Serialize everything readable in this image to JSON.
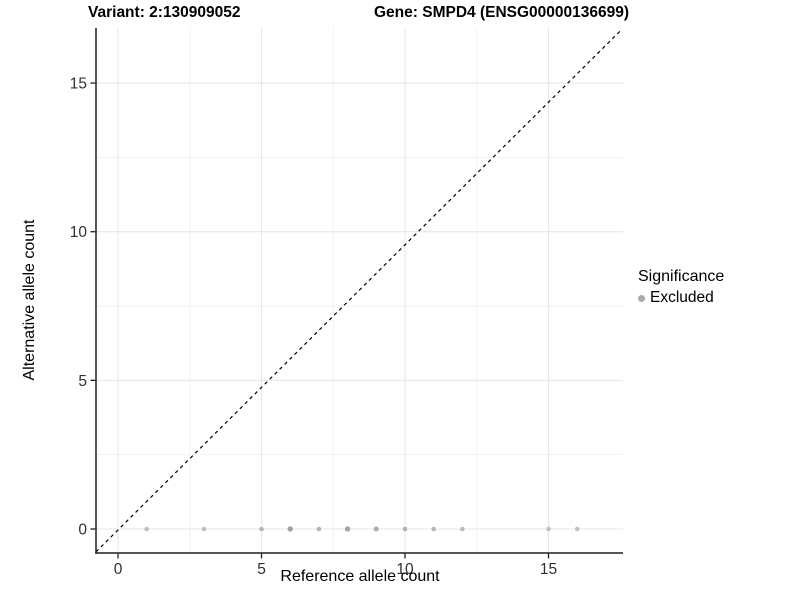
{
  "chart_data": {
    "type": "scatter",
    "title_left": "Variant: 2:130909052",
    "title_right": "Gene: SMPD4 (ENSG00000136699)",
    "xlabel": "Reference allele count",
    "ylabel": "Alternative allele count",
    "xlim": [
      -0.77,
      17.6
    ],
    "ylim": [
      -0.81,
      17.0
    ],
    "x_ticks": [
      0,
      5,
      10,
      15
    ],
    "y_ticks": [
      0,
      5,
      10,
      15
    ],
    "x_minor_gridlines": [
      2.5,
      7.5,
      12.5
    ],
    "y_minor_gridlines": [
      2.5,
      7.5,
      12.5
    ],
    "grid": true,
    "points": [
      {
        "x": 1,
        "y": 0,
        "color": "#bdbdbd",
        "r": 2.3
      },
      {
        "x": 3,
        "y": 0,
        "color": "#bdbdbd",
        "r": 2.3
      },
      {
        "x": 5,
        "y": 0,
        "color": "#b5b5b5",
        "r": 2.3
      },
      {
        "x": 6,
        "y": 0,
        "color": "#a2a2a2",
        "r": 2.7
      },
      {
        "x": 7,
        "y": 0,
        "color": "#b5b5b5",
        "r": 2.3
      },
      {
        "x": 8,
        "y": 0,
        "color": "#a6a6a6",
        "r": 2.7
      },
      {
        "x": 9,
        "y": 0,
        "color": "#ababab",
        "r": 2.5
      },
      {
        "x": 10,
        "y": 0,
        "color": "#b2b2b2",
        "r": 2.3
      },
      {
        "x": 11,
        "y": 0,
        "color": "#b5b5b5",
        "r": 2.3
      },
      {
        "x": 12,
        "y": 0,
        "color": "#bababa",
        "r": 2.3
      },
      {
        "x": 15,
        "y": 0,
        "color": "#c0c0c0",
        "r": 2.3
      },
      {
        "x": 16,
        "y": 0,
        "color": "#c0c0c0",
        "r": 2.3
      }
    ],
    "abline": {
      "label": "y = x",
      "style": "dashed",
      "color": "#000000",
      "x1": -0.77,
      "y1": -0.77,
      "x2": 17.55,
      "y2": 16.8
    },
    "legend": {
      "title": "Significance",
      "position": "right",
      "items": [
        {
          "label": "Excluded",
          "color": "#ababab"
        }
      ]
    },
    "colors": {
      "major_grid": "#e7e7e7",
      "minor_grid": "#f2f2f2",
      "axis_line": "#1f1f1f",
      "tick_label": "#303030",
      "background": "#ffffff"
    }
  }
}
